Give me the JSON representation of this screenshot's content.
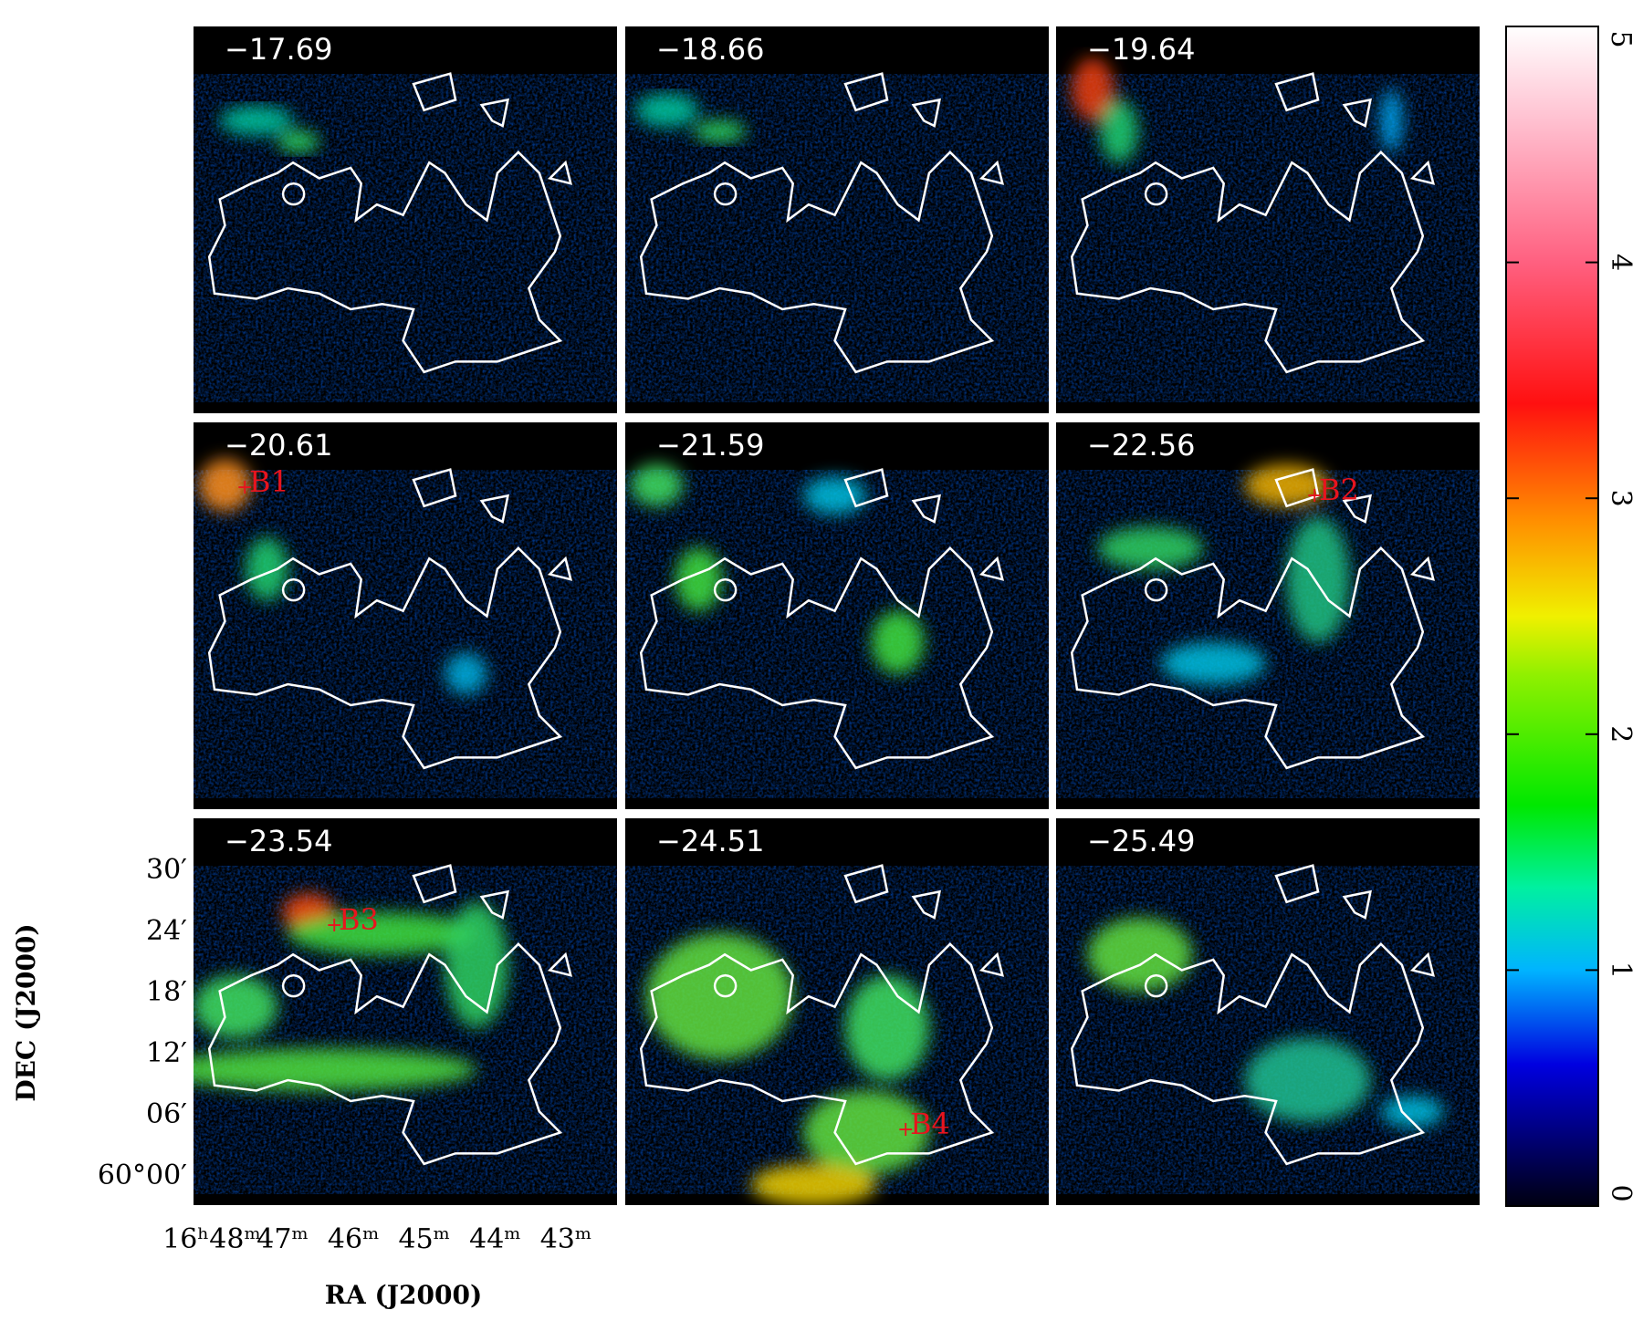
{
  "panels": [
    {
      "velocity": "−17.69"
    },
    {
      "velocity": "−18.66"
    },
    {
      "velocity": "−19.64"
    },
    {
      "velocity": "−20.61",
      "source": "B1"
    },
    {
      "velocity": "−21.59"
    },
    {
      "velocity": "−22.56",
      "source": "B2"
    },
    {
      "velocity": "−23.54",
      "source": "B3"
    },
    {
      "velocity": "−24.51",
      "source": "B4"
    },
    {
      "velocity": "−25.49"
    }
  ],
  "axes": {
    "x_label": "RA (J2000)",
    "y_label": "DEC (J2000)",
    "x_ticks": [
      "16ʰ48ᵐ",
      "47ᵐ",
      "46ᵐ",
      "45ᵐ",
      "44ᵐ",
      "43ᵐ"
    ],
    "y_ticks": [
      "30′",
      "24′",
      "18′",
      "12′",
      "06′",
      "60°00′"
    ]
  },
  "colorbar": {
    "lim": [
      0,
      5
    ],
    "ticks": [
      0,
      1,
      2,
      3,
      4,
      5
    ]
  }
}
